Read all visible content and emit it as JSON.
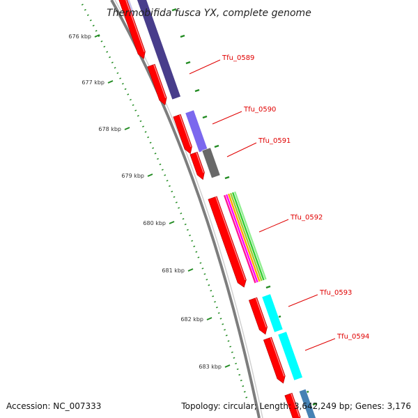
{
  "title": "Thermobifida fusca YX, complete genome",
  "accession_label": "Accession: NC_007333",
  "summary_label": "Topology: circular; Length: 3,642,249 bp; Genes: 3,176",
  "ticks": [
    "676 kbp",
    "677 kbp",
    "678 kbp",
    "679 kbp",
    "680 kbp",
    "681 kbp",
    "682 kbp",
    "683 kbp"
  ],
  "genes": [
    {
      "name": "Tfu_0589",
      "color": "#483d8b"
    },
    {
      "name": "Tfu_0590",
      "color": "#7b68ee"
    },
    {
      "name": "Tfu_0591",
      "color": "#696969"
    },
    {
      "name": "Tfu_0592",
      "color": "#ff1493"
    },
    {
      "name": "Tfu_0593",
      "color": "#00ffff"
    },
    {
      "name": "Tfu_0594",
      "color": "#00ffff"
    }
  ],
  "colors": {
    "arrow": "#ff0000",
    "backbone": "#888888",
    "tick": "#228b22",
    "label": "#e00000",
    "stripe_extra": [
      "#ff00ff",
      "#ffa500",
      "#9acd32",
      "#32cd32",
      "#90ee90"
    ],
    "extra_blue": "#4682b4"
  }
}
